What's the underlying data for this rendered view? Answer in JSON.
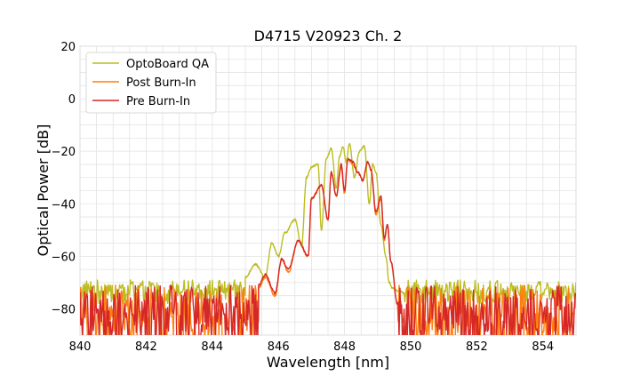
{
  "chart_data": {
    "type": "line",
    "title": "D4715 V20923 Ch. 2",
    "xlabel": "Wavelength [nm]",
    "ylabel": "Optical Power [dB]",
    "xlim": [
      840,
      855
    ],
    "ylim": [
      -90,
      20
    ],
    "xticks": [
      840,
      842,
      844,
      846,
      848,
      850,
      852,
      854
    ],
    "yticks": [
      20,
      0,
      -20,
      -40,
      -60,
      -80
    ],
    "xtick_labels": [
      "840",
      "842",
      "844",
      "846",
      "848",
      "850",
      "852",
      "854"
    ],
    "ytick_labels": [
      "20",
      "0",
      "−20",
      "−40",
      "−60",
      "−80"
    ],
    "grid": true,
    "legend_position": "top-left",
    "series": [
      {
        "name": "OptoBoard QA",
        "color": "#bcbd22",
        "noise_floor": -72,
        "noise_min": -76,
        "noise_max": -69,
        "x": [
          845.0,
          845.3,
          845.6,
          845.8,
          846.0,
          846.2,
          846.5,
          846.7,
          846.85,
          847.0,
          847.2,
          847.3,
          847.45,
          847.6,
          847.75,
          847.85,
          847.95,
          848.05,
          848.15,
          848.3,
          848.45,
          848.6,
          848.75,
          848.85,
          848.95,
          849.1,
          849.25,
          849.35,
          849.45,
          849.6,
          849.8
        ],
        "y": [
          -68,
          -63,
          -68,
          -55,
          -60,
          -51,
          -46,
          -56,
          -30,
          -26,
          -25,
          -50,
          -23,
          -19,
          -34,
          -22,
          -18,
          -24,
          -17,
          -30,
          -20,
          -18,
          -40,
          -25,
          -28,
          -48,
          -60,
          -70,
          -72,
          -73,
          -74
        ]
      },
      {
        "name": "Post Burn-In",
        "color": "#ff7f0e",
        "noise_floor": -80,
        "noise_min": -90,
        "noise_max": -71,
        "x": [
          845.4,
          845.6,
          845.9,
          846.1,
          846.3,
          846.6,
          846.9,
          847.0,
          847.3,
          847.5,
          847.6,
          847.75,
          847.9,
          848.0,
          848.1,
          848.25,
          848.4,
          848.55,
          848.7,
          848.8,
          848.95,
          849.1,
          849.2,
          849.3,
          849.4,
          849.6
        ],
        "y": [
          -72,
          -68,
          -75,
          -61,
          -66,
          -54,
          -60,
          -38,
          -33,
          -46,
          -28,
          -37,
          -26,
          -36,
          -23,
          -25,
          -28,
          -31,
          -24,
          -27,
          -44,
          -38,
          -54,
          -48,
          -62,
          -78
        ]
      },
      {
        "name": "Pre Burn-In",
        "color": "#d62728",
        "noise_floor": -80,
        "noise_min": -90,
        "noise_max": -71,
        "x": [
          845.4,
          845.6,
          845.9,
          846.1,
          846.3,
          846.6,
          846.9,
          847.0,
          847.3,
          847.5,
          847.6,
          847.75,
          847.9,
          848.0,
          848.1,
          848.25,
          848.4,
          848.55,
          848.7,
          848.8,
          848.95,
          849.1,
          849.2,
          849.3,
          849.4,
          849.6
        ],
        "y": [
          -71,
          -67,
          -74,
          -61,
          -65,
          -54,
          -60,
          -38,
          -33,
          -46,
          -28,
          -37,
          -25,
          -35,
          -23,
          -24,
          -28,
          -31,
          -24,
          -27,
          -43,
          -37,
          -53,
          -48,
          -62,
          -78
        ]
      }
    ]
  }
}
